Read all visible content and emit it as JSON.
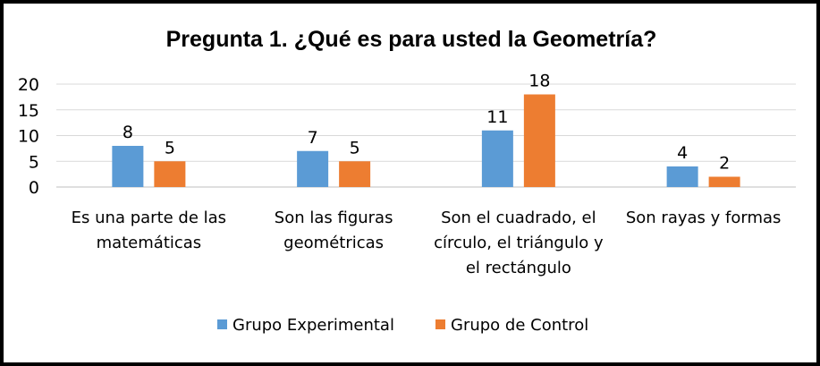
{
  "chart_data": {
    "type": "bar",
    "title": "Pregunta 1. ¿Qué es para usted la Geometría?",
    "categories": [
      [
        "Es una parte de las",
        "matemáticas"
      ],
      [
        "Son las figuras",
        "geométricas"
      ],
      [
        "Son el cuadrado, el",
        "círculo, el triángulo y",
        "el rectángulo"
      ],
      [
        "Son rayas y formas"
      ]
    ],
    "series": [
      {
        "name": "Grupo Experimental",
        "color": "#5B9BD5",
        "values": [
          8,
          7,
          11,
          4
        ]
      },
      {
        "name": "Grupo de Control",
        "color": "#ED7D31",
        "values": [
          5,
          5,
          18,
          2
        ]
      }
    ],
    "yticks": [
      "0",
      "5",
      "10",
      "15",
      "20"
    ],
    "ylim": [
      0,
      20
    ],
    "grid": true,
    "legend_position": "bottom",
    "xlabel": "",
    "ylabel": ""
  }
}
